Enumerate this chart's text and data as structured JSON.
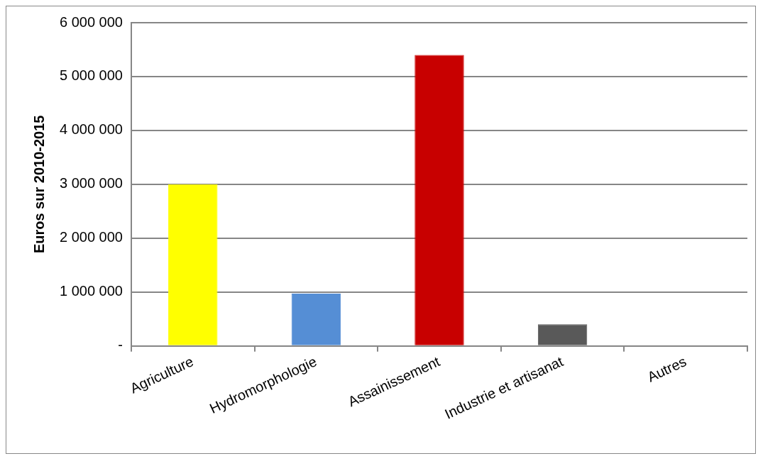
{
  "chart_data": {
    "type": "bar",
    "ylabel": "Euros sur 2010-2015",
    "categories": [
      "Agriculture",
      "Hydromorphologie",
      "Assainissement",
      "Industrie et artisanat",
      "Autres"
    ],
    "values": [
      3000000,
      970000,
      5400000,
      400000,
      0
    ],
    "colors": [
      "#ffff00",
      "#558ed5",
      "#c80000",
      "#595959",
      "#888888"
    ],
    "ylim": [
      0,
      6000000
    ],
    "yticks": [
      {
        "value": 0,
        "label": "-"
      },
      {
        "value": 1000000,
        "label": "1 000 000"
      },
      {
        "value": 2000000,
        "label": "2 000 000"
      },
      {
        "value": 3000000,
        "label": "3 000 000"
      },
      {
        "value": 4000000,
        "label": "4 000 000"
      },
      {
        "value": 5000000,
        "label": "5 000 000"
      },
      {
        "value": 6000000,
        "label": "6 000 000"
      }
    ],
    "grid": "y",
    "legend": false
  }
}
